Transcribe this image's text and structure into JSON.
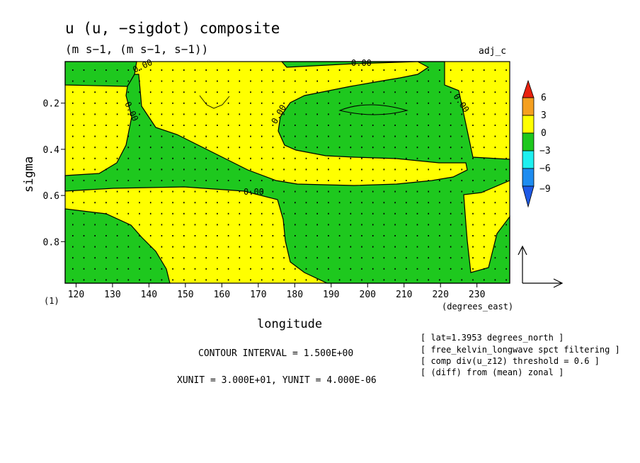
{
  "chart_data": {
    "type": "heatmap",
    "title": "u (u, −sigdot) composite",
    "subtitle": "(m s−1, (m s−1, s−1))",
    "label_right": "adj_c",
    "xlabel": "longitude",
    "ylabel": "sigma",
    "x_units": "(degrees_east)",
    "y_units": "(1)",
    "xlim": [
      117,
      239
    ],
    "ylim": [
      0.02,
      0.98
    ],
    "y_reversed": true,
    "x_ticks": [
      "120",
      "130",
      "140",
      "150",
      "160",
      "170",
      "180",
      "190",
      "200",
      "210",
      "220",
      "230"
    ],
    "y_ticks": [
      "0.2",
      "0.4",
      "0.6",
      "0.8"
    ],
    "colorbar": {
      "labels": [
        "6",
        "3",
        "0",
        "−3",
        "−6",
        "−9"
      ],
      "colors": [
        "#e8200e",
        "#f5a020",
        "#ffff00",
        "#1ec81e",
        "#1ef0f0",
        "#1e8cf0",
        "#1e5ae6"
      ]
    },
    "contour_labels": [
      "0.00",
      "0.00",
      "0.00",
      "0.00",
      "0.00",
      "0.00"
    ],
    "contour_interval": "CONTOUR INTERVAL = 1.500E+00",
    "vector_units": "XUNIT = 3.000E+01, YUNIT = 4.000E-06",
    "notes": [
      "[ lat=1.3953 degrees_north ]",
      "[ free_kelvin_longwave spct filtering ]",
      "[ comp div(u_z12) threshold = 0.6 ]",
      "[ (diff) from (mean) zonal ]"
    ],
    "fill_colors": {
      "positive": "#ffff00",
      "negative": "#1ec81e"
    }
  }
}
